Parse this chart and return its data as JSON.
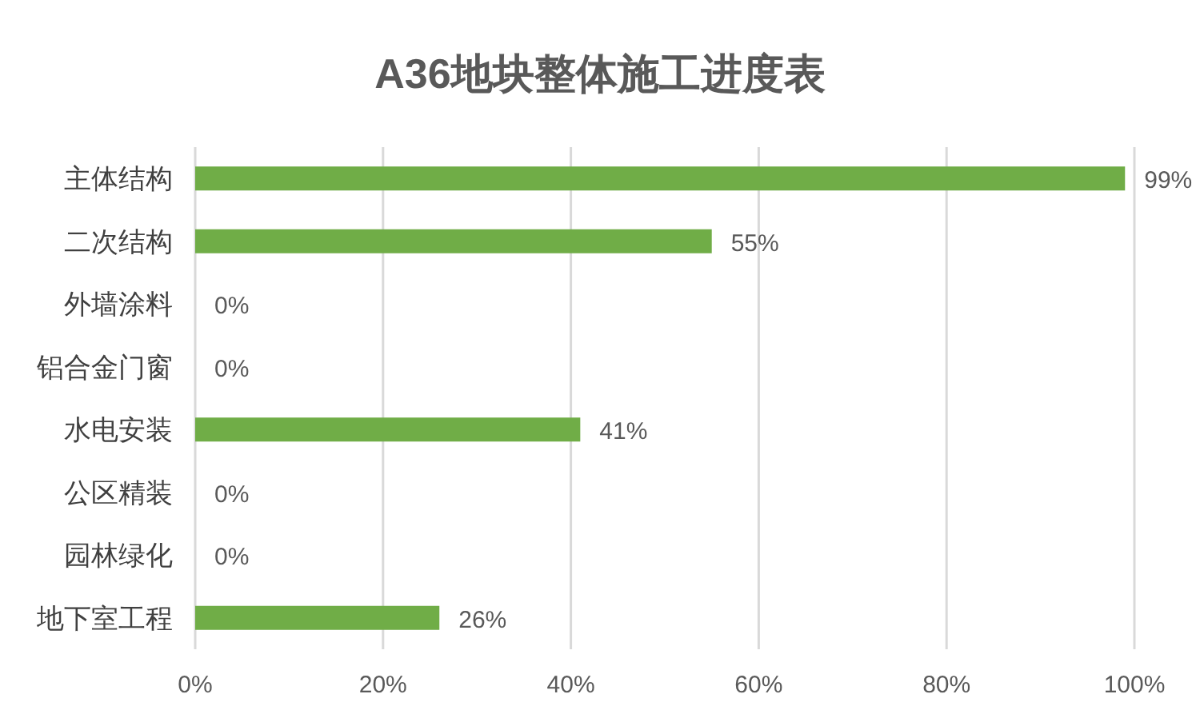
{
  "chart_data": {
    "type": "bar",
    "orientation": "horizontal",
    "title": "A36地块整体施工进度表",
    "categories": [
      "主体结构",
      "二次结构",
      "外墙涂料",
      "铝合金门窗",
      "水电安装",
      "公区精装",
      "园林绿化",
      "地下室工程"
    ],
    "values": [
      99,
      55,
      0,
      0,
      41,
      0,
      0,
      26
    ],
    "value_labels": [
      "99%",
      "55%",
      "0%",
      "0%",
      "41%",
      "0%",
      "0%",
      "26%"
    ],
    "color": "#70ad47",
    "xlim": [
      0,
      100
    ],
    "xticks": [
      {
        "value": 0,
        "label": "0%"
      },
      {
        "value": 20,
        "label": "20%"
      },
      {
        "value": 40,
        "label": "40%"
      },
      {
        "value": 60,
        "label": "60%"
      },
      {
        "value": 80,
        "label": "80%"
      },
      {
        "value": 100,
        "label": "100%"
      }
    ],
    "grid": "x"
  }
}
